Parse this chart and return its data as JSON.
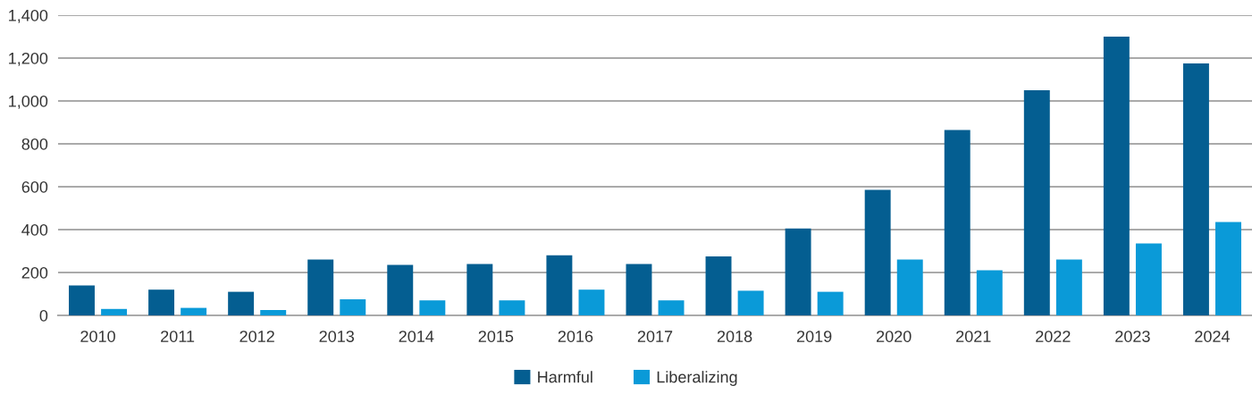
{
  "chart_data": {
    "type": "bar",
    "categories": [
      "2010",
      "2011",
      "2012",
      "2013",
      "2014",
      "2015",
      "2016",
      "2017",
      "2018",
      "2019",
      "2020",
      "2021",
      "2022",
      "2023",
      "2024"
    ],
    "series": [
      {
        "name": "Harmful",
        "color": "#045e91",
        "values": [
          140,
          120,
          110,
          260,
          235,
          240,
          280,
          240,
          275,
          405,
          585,
          865,
          1050,
          1300,
          1175
        ]
      },
      {
        "name": "Liberalizing",
        "color": "#0a9ad8",
        "values": [
          30,
          35,
          25,
          75,
          70,
          70,
          120,
          70,
          115,
          110,
          260,
          210,
          260,
          335,
          435
        ]
      }
    ],
    "ylim": [
      0,
      1400
    ],
    "yticks": [
      0,
      {
        "value": 200,
        "label": "200"
      },
      {
        "value": 400,
        "label": "400"
      },
      {
        "value": 600,
        "label": "600"
      },
      {
        "value": 800,
        "label": "800"
      },
      {
        "value": 1000,
        "label": "1,000"
      },
      {
        "value": 1200,
        "label": "1,200"
      },
      {
        "value": 1400,
        "label": "1,400"
      }
    ],
    "grid": "y",
    "legend": "bottom"
  }
}
